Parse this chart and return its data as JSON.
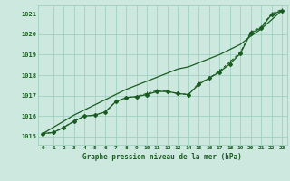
{
  "title": "Graphe pression niveau de la mer (hPa)",
  "xlabel_hours": [
    0,
    1,
    2,
    3,
    4,
    5,
    6,
    7,
    8,
    9,
    10,
    11,
    12,
    13,
    14,
    15,
    16,
    17,
    18,
    19,
    20,
    21,
    22,
    23
  ],
  "ylim": [
    1014.6,
    1021.4
  ],
  "xlim": [
    -0.5,
    23.5
  ],
  "yticks": [
    1015,
    1016,
    1017,
    1018,
    1019,
    1020,
    1021
  ],
  "background_color": "#cce8df",
  "grid_color": "#99ccbb",
  "line_color": "#1a5c20",
  "line1_solid": [
    1015.15,
    1015.2,
    1015.45,
    1015.75,
    1016.0,
    1016.05,
    1016.2,
    1016.7,
    1016.9,
    1016.95,
    1017.05,
    1017.2,
    1017.2,
    1017.1,
    1017.05,
    1017.55,
    1017.85,
    1018.15,
    1018.55,
    1019.05,
    1020.05,
    1020.3,
    1020.95,
    1021.15
  ],
  "line2_dotted": [
    1015.15,
    1015.2,
    1015.45,
    1015.75,
    1016.0,
    1016.05,
    1016.2,
    1016.7,
    1016.9,
    1016.95,
    1017.1,
    1017.25,
    1017.2,
    1017.1,
    1017.05,
    1017.6,
    1017.85,
    1018.2,
    1018.65,
    1019.1,
    1020.1,
    1020.35,
    1021.0,
    1021.2
  ],
  "line3_straight": [
    1015.15,
    1015.45,
    1015.75,
    1016.05,
    1016.3,
    1016.55,
    1016.8,
    1017.05,
    1017.3,
    1017.5,
    1017.7,
    1017.9,
    1018.1,
    1018.3,
    1018.4,
    1018.6,
    1018.8,
    1019.0,
    1019.25,
    1019.5,
    1019.9,
    1020.25,
    1020.7,
    1021.15
  ]
}
